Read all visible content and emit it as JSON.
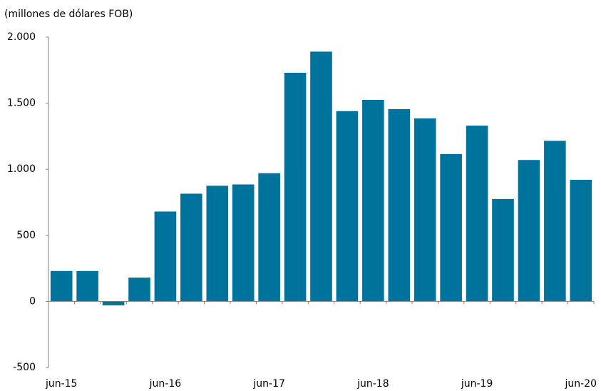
{
  "chart_data": {
    "type": "bar",
    "title": "(millones de dólares FOB)",
    "categories": [
      "jun-15",
      null,
      null,
      null,
      "jun-16",
      null,
      null,
      null,
      "jun-17",
      null,
      null,
      null,
      "jun-18",
      null,
      null,
      null,
      "jun-19",
      null,
      null,
      null,
      "jun-20"
    ],
    "values": [
      230,
      230,
      -30,
      180,
      680,
      815,
      875,
      885,
      970,
      1730,
      1890,
      1440,
      1525,
      1455,
      1385,
      1115,
      1330,
      775,
      1070,
      1215,
      920
    ],
    "color": "#00739c",
    "ylim": [
      -500,
      2000
    ],
    "yticks": [
      {
        "value": -500,
        "label": "-500"
      },
      0,
      500,
      {
        "value": 1000,
        "label": "1.000"
      },
      {
        "value": 1500,
        "label": "1.500"
      },
      {
        "value": 2000,
        "label": "2.000"
      }
    ],
    "grid": false
  }
}
